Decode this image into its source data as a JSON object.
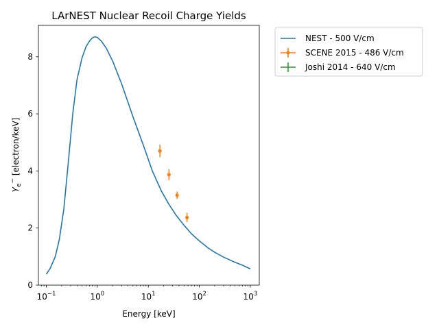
{
  "chart_data": {
    "type": "line",
    "title": "LArNEST Nuclear Recoil Charge Yields",
    "xlabel": "Energy [keV]",
    "ylabel": "Y_e- [electron/keV]",
    "ylabel_parts": {
      "symbol": "Y",
      "sub": "e",
      "sup": "−",
      "unit": " [electron/keV]"
    },
    "xscale": "log",
    "xlim": [
      0.07,
      1500
    ],
    "ylim": [
      0,
      9.1
    ],
    "grid": false,
    "legend_position": "outside-top-right",
    "x_ticks": [
      {
        "base": "10",
        "exp": "−1",
        "value": 0.1
      },
      {
        "base": "10",
        "exp": "0",
        "value": 1
      },
      {
        "base": "10",
        "exp": "1",
        "value": 10
      },
      {
        "base": "10",
        "exp": "2",
        "value": 100
      },
      {
        "base": "10",
        "exp": "3",
        "value": 1000
      }
    ],
    "y_ticks": [
      {
        "label": "0",
        "value": 0
      },
      {
        "label": "2",
        "value": 2
      },
      {
        "label": "4",
        "value": 4
      },
      {
        "label": "6",
        "value": 6
      },
      {
        "label": "8",
        "value": 8
      }
    ],
    "series": [
      {
        "name": "NEST - 500 V/cm",
        "kind": "line",
        "color": "#1f77b4",
        "x": [
          0.1,
          0.12,
          0.15,
          0.18,
          0.22,
          0.27,
          0.33,
          0.4,
          0.5,
          0.6,
          0.7,
          0.8,
          0.9,
          1.0,
          1.2,
          1.5,
          2,
          3,
          5,
          8,
          12,
          18,
          25,
          35,
          50,
          70,
          100,
          150,
          200,
          300,
          500,
          700,
          1000
        ],
        "y": [
          0.38,
          0.6,
          1.0,
          1.6,
          2.65,
          4.3,
          6.0,
          7.2,
          7.95,
          8.35,
          8.55,
          8.66,
          8.7,
          8.68,
          8.55,
          8.3,
          7.85,
          7.05,
          5.9,
          4.9,
          4.0,
          3.3,
          2.85,
          2.45,
          2.1,
          1.8,
          1.55,
          1.3,
          1.15,
          0.98,
          0.8,
          0.7,
          0.57
        ]
      },
      {
        "name": "SCENE 2015 - 486 V/cm",
        "kind": "errorbar",
        "color": "#ff7f0e",
        "points": [
          {
            "x": 16.9,
            "y": 4.7,
            "yerr": 0.22,
            "xerr": 0.6
          },
          {
            "x": 25.4,
            "y": 3.87,
            "yerr": 0.19,
            "xerr": 0.9
          },
          {
            "x": 36.7,
            "y": 3.15,
            "yerr": 0.13,
            "xerr": 1.3
          },
          {
            "x": 57.3,
            "y": 2.37,
            "yerr": 0.16,
            "xerr": 2.2
          }
        ]
      },
      {
        "name": "Joshi 2014 - 640 V/cm",
        "kind": "errorbar",
        "color": "#2ca02c",
        "points": []
      }
    ]
  }
}
